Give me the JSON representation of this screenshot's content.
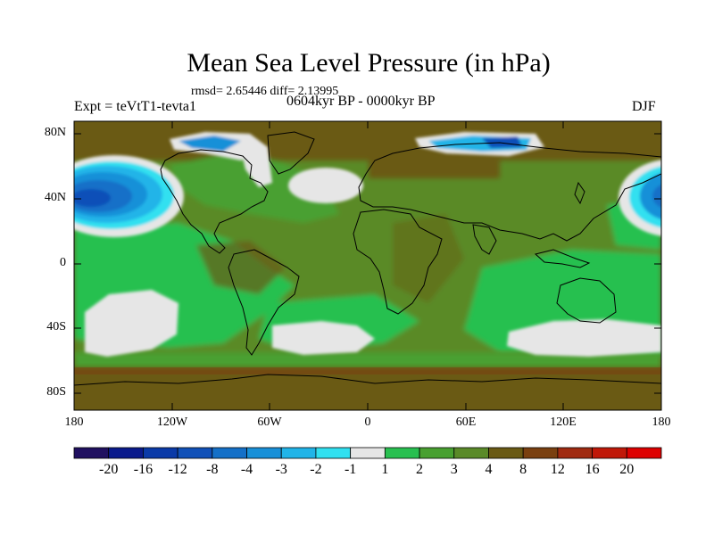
{
  "title": "Mean Sea Level Pressure (in hPa)",
  "stats": "rmsd= 2.65446 diff= 2.13995",
  "subtitle": "0604kyr BP - 0000kyr BP",
  "experiment": "Expt = teVtT1-tevta1",
  "season": "DJF",
  "lat_ticks": [
    "80N",
    "40N",
    "0",
    "40S",
    "80S"
  ],
  "lon_ticks": [
    "180",
    "120W",
    "60W",
    "0",
    "60E",
    "120E",
    "180"
  ],
  "colorbar": {
    "labels": [
      "-20",
      "-16",
      "-12",
      "-8",
      "-4",
      "-3",
      "-2",
      "-1",
      "1",
      "2",
      "3",
      "4",
      "8",
      "12",
      "16",
      "20"
    ],
    "colors": [
      "#201060",
      "#0a1a8c",
      "#0a3aa8",
      "#1050b8",
      "#1470c8",
      "#1890d8",
      "#20b4e8",
      "#30e0f0",
      "#e6e6e6",
      "#28c050",
      "#48a030",
      "#5a8a28",
      "#6a5a14",
      "#7a4010",
      "#a02a10",
      "#c01808",
      "#dd0000"
    ]
  },
  "colors": {
    "ocean_base": "#6a5a14",
    "land_base": "#5a8a28",
    "coastline": "#000000"
  }
}
